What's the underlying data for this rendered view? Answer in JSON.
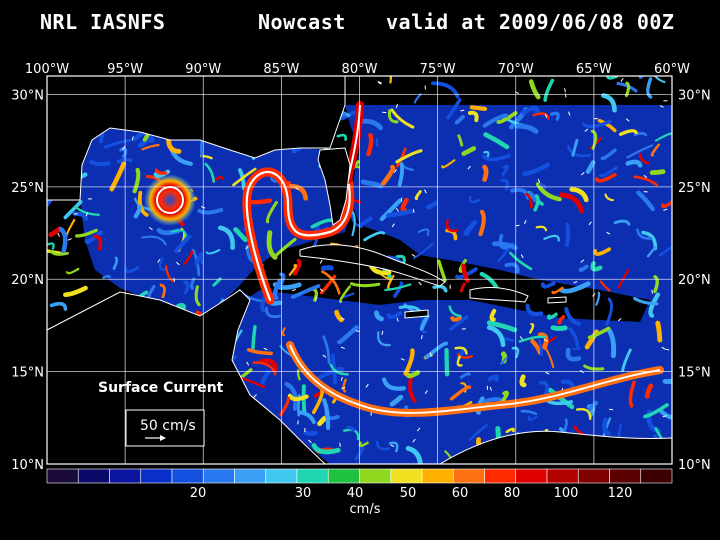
{
  "header": {
    "model": "NRL IASNFS",
    "product": "Nowcast",
    "valid": "valid at 2009/06/08 00Z"
  },
  "axes": {
    "lon_labels": [
      "100°W",
      "95°W",
      "90°W",
      "85°W",
      "80°W",
      "75°W",
      "70°W",
      "65°W",
      "60°W"
    ],
    "lat_labels": [
      "30°N",
      "25°N",
      "20°N",
      "15°N",
      "10°N"
    ],
    "lon_range": [
      -100,
      -60
    ],
    "lat_range": [
      10,
      31
    ]
  },
  "map": {
    "field_label": "Surface Current",
    "reference_vector_label": "50 cm/s",
    "reference_vector_value_cms": 50
  },
  "colorbar": {
    "unit": "cm/s",
    "tick_labels": [
      "20",
      "30",
      "40",
      "50",
      "60",
      "80",
      "100",
      "120"
    ],
    "colors": [
      "#1a0b3a",
      "#0a0a6b",
      "#0b15a0",
      "#0a2fc9",
      "#1450e0",
      "#2a78ef",
      "#3aa0f5",
      "#40c8f0",
      "#1fd6b0",
      "#20c040",
      "#90d820",
      "#f0e020",
      "#ffb000",
      "#ff7010",
      "#ff2a00",
      "#e00000",
      "#b00000",
      "#800000",
      "#5a0000",
      "#3a0000"
    ]
  },
  "colors": {
    "ocean_base": "#0a0f45",
    "land": "#000000",
    "coast": "#ffffff"
  }
}
